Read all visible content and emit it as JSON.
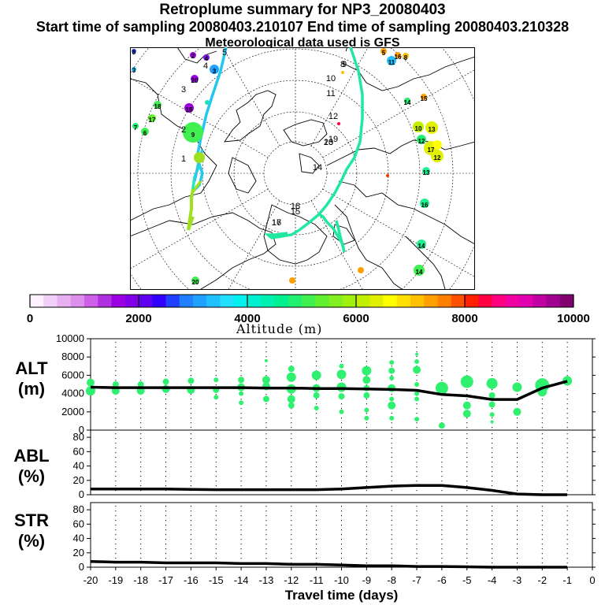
{
  "header": {
    "title": "Retroplume summary for NP3_20080403",
    "times": "Start time of sampling 20080403.210107     End time of sampling 20080403.210328",
    "met": "Meteorological data used is GFS"
  },
  "map": {
    "traj_day_labels": [
      "1",
      "2",
      "3",
      "4",
      "5",
      "6",
      "7",
      "8",
      "9",
      "10",
      "11",
      "12",
      "13",
      "14",
      "15",
      "16",
      "17",
      "18",
      "19",
      "20"
    ],
    "cluster_labels": [
      "8",
      "3",
      "2",
      "4",
      "3",
      "20",
      "19",
      "18",
      "17",
      "6",
      "7",
      "9",
      "5",
      "11",
      "16",
      "8",
      "14",
      "15",
      "10",
      "13",
      "12",
      "17",
      "12",
      "13",
      "16",
      "14",
      "14",
      "20"
    ]
  },
  "colorbar": {
    "ticks": [
      "0",
      "2000",
      "4000",
      "6000",
      "8000",
      "10000"
    ],
    "label": "Altitude (m)",
    "colors": [
      "#fff0ff",
      "#f0d0f8",
      "#e8b0f0",
      "#dc90ec",
      "#cc60e8",
      "#b030e0",
      "#9a00e0",
      "#8000e8",
      "#6000f0",
      "#3000ff",
      "#2040ff",
      "#2080ff",
      "#20a0ff",
      "#20c0ff",
      "#20e0ff",
      "#00f0f0",
      "#00f0d0",
      "#00f0b0",
      "#00f090",
      "#20f070",
      "#40f050",
      "#60f030",
      "#80f020",
      "#a0f010",
      "#c0f000",
      "#e0f000",
      "#ffff00",
      "#ffe000",
      "#ffc000",
      "#ffa000",
      "#ff8000",
      "#ff5000",
      "#ff2000",
      "#ff0040",
      "#ff0080",
      "#f000a0",
      "#e000b0",
      "#c000a0",
      "#a00090",
      "#800070"
    ]
  },
  "chart_data": [
    {
      "type": "line",
      "name": "ALT",
      "title": "ALT",
      "ylabel": "ALT (m)",
      "ylim": [
        0,
        10000
      ],
      "yticks": [
        0,
        2000,
        4000,
        6000,
        8000,
        10000
      ],
      "x": [
        -20,
        -19,
        -18,
        -17,
        -16,
        -15,
        -14,
        -13,
        -12,
        -11,
        -10,
        -9,
        -8,
        -7,
        -6,
        -5,
        -4,
        -3,
        -2,
        -1
      ],
      "values": [
        4700,
        4650,
        4650,
        4650,
        4650,
        4650,
        4650,
        4600,
        4600,
        4550,
        4550,
        4500,
        4450,
        4350,
        3900,
        3750,
        3350,
        3350,
        4600,
        5350
      ],
      "scatter_points": [
        {
          "x": -20,
          "y": 5200,
          "s": 5
        },
        {
          "x": -20,
          "y": 4300,
          "s": 6
        },
        {
          "x": -19,
          "y": 5000,
          "s": 4
        },
        {
          "x": -19,
          "y": 4300,
          "s": 5
        },
        {
          "x": -18,
          "y": 5000,
          "s": 4
        },
        {
          "x": -18,
          "y": 4300,
          "s": 5
        },
        {
          "x": -17,
          "y": 5300,
          "s": 4
        },
        {
          "x": -17,
          "y": 4500,
          "s": 5
        },
        {
          "x": -16,
          "y": 5400,
          "s": 4
        },
        {
          "x": -16,
          "y": 4400,
          "s": 5
        },
        {
          "x": -15,
          "y": 5500,
          "s": 3
        },
        {
          "x": -15,
          "y": 4400,
          "s": 4
        },
        {
          "x": -15,
          "y": 3600,
          "s": 3
        },
        {
          "x": -14,
          "y": 5500,
          "s": 4
        },
        {
          "x": -14,
          "y": 4700,
          "s": 5
        },
        {
          "x": -14,
          "y": 4000,
          "s": 3
        },
        {
          "x": -14,
          "y": 3000,
          "s": 3
        },
        {
          "x": -13,
          "y": 7600,
          "s": 2
        },
        {
          "x": -13,
          "y": 5500,
          "s": 5
        },
        {
          "x": -13,
          "y": 4800,
          "s": 5
        },
        {
          "x": -13,
          "y": 3400,
          "s": 4
        },
        {
          "x": -12,
          "y": 6700,
          "s": 4
        },
        {
          "x": -12,
          "y": 5800,
          "s": 6
        },
        {
          "x": -12,
          "y": 4500,
          "s": 6
        },
        {
          "x": -12,
          "y": 3400,
          "s": 5
        },
        {
          "x": -12,
          "y": 2700,
          "s": 4
        },
        {
          "x": -11,
          "y": 6000,
          "s": 6
        },
        {
          "x": -11,
          "y": 4600,
          "s": 5
        },
        {
          "x": -11,
          "y": 3800,
          "s": 4
        },
        {
          "x": -11,
          "y": 2400,
          "s": 3
        },
        {
          "x": -10,
          "y": 7000,
          "s": 3
        },
        {
          "x": -10,
          "y": 6100,
          "s": 6
        },
        {
          "x": -10,
          "y": 4700,
          "s": 6
        },
        {
          "x": -10,
          "y": 3700,
          "s": 4
        },
        {
          "x": -10,
          "y": 2000,
          "s": 3
        },
        {
          "x": -9,
          "y": 6500,
          "s": 6
        },
        {
          "x": -9,
          "y": 5500,
          "s": 5
        },
        {
          "x": -9,
          "y": 4600,
          "s": 4
        },
        {
          "x": -9,
          "y": 3800,
          "s": 4
        },
        {
          "x": -9,
          "y": 2200,
          "s": 3
        },
        {
          "x": -9,
          "y": 1300,
          "s": 3
        },
        {
          "x": -8,
          "y": 7400,
          "s": 3
        },
        {
          "x": -8,
          "y": 6500,
          "s": 4
        },
        {
          "x": -8,
          "y": 5700,
          "s": 3
        },
        {
          "x": -8,
          "y": 4600,
          "s": 5
        },
        {
          "x": -8,
          "y": 3400,
          "s": 3
        },
        {
          "x": -8,
          "y": 2700,
          "s": 5
        },
        {
          "x": -8,
          "y": 1300,
          "s": 3
        },
        {
          "x": -7,
          "y": 8300,
          "s": 2
        },
        {
          "x": -7,
          "y": 7500,
          "s": 3
        },
        {
          "x": -7,
          "y": 6600,
          "s": 5
        },
        {
          "x": -7,
          "y": 5000,
          "s": 3
        },
        {
          "x": -7,
          "y": 4000,
          "s": 3
        },
        {
          "x": -7,
          "y": 3400,
          "s": 3
        },
        {
          "x": -7,
          "y": 1200,
          "s": 3
        },
        {
          "x": -6,
          "y": 4600,
          "s": 8
        },
        {
          "x": -6,
          "y": 500,
          "s": 4
        },
        {
          "x": -5,
          "y": 5300,
          "s": 8
        },
        {
          "x": -5,
          "y": 2700,
          "s": 5
        },
        {
          "x": -5,
          "y": 1800,
          "s": 5
        },
        {
          "x": -4,
          "y": 5100,
          "s": 7
        },
        {
          "x": -4,
          "y": 3800,
          "s": 4
        },
        {
          "x": -4,
          "y": 2800,
          "s": 4
        },
        {
          "x": -4,
          "y": 1700,
          "s": 3
        },
        {
          "x": -4,
          "y": 900,
          "s": 2
        },
        {
          "x": -3,
          "y": 4700,
          "s": 6
        },
        {
          "x": -3,
          "y": 2000,
          "s": 5
        },
        {
          "x": -2,
          "y": 4900,
          "s": 9
        },
        {
          "x": -2,
          "y": 4200,
          "s": 6
        },
        {
          "x": -1,
          "y": 5400,
          "s": 6
        }
      ]
    },
    {
      "type": "line",
      "name": "ABL",
      "title": "ABL",
      "ylabel": "ABL (%)",
      "ylim": [
        0,
        90
      ],
      "yticks": [
        0,
        20,
        40,
        60,
        80
      ],
      "x": [
        -20,
        -19,
        -18,
        -17,
        -16,
        -15,
        -14,
        -13,
        -12,
        -11,
        -10,
        -9,
        -8,
        -7,
        -6,
        -5,
        -4,
        -3,
        -2,
        -1
      ],
      "values": [
        8,
        8,
        8,
        8,
        7.5,
        7,
        7,
        7,
        7,
        7,
        8,
        10,
        12,
        13,
        13,
        10,
        6,
        1,
        0,
        0
      ]
    },
    {
      "type": "line",
      "name": "STR",
      "title": "STR",
      "ylabel": "STR (%)",
      "ylim": [
        0,
        90
      ],
      "yticks": [
        0,
        20,
        40,
        60,
        80
      ],
      "x": [
        -20,
        -19,
        -18,
        -17,
        -16,
        -15,
        -14,
        -13,
        -12,
        -11,
        -10,
        -9,
        -8,
        -7,
        -6,
        -5,
        -4,
        -3,
        -2,
        -1
      ],
      "values": [
        8,
        7,
        7,
        6,
        6,
        6,
        5,
        5,
        4,
        4,
        3,
        2,
        2,
        1,
        1,
        0.5,
        0,
        0,
        0,
        0
      ],
      "xlabel": "Travel time (days)",
      "xticks": [
        -20,
        -19,
        -18,
        -17,
        -16,
        -15,
        -14,
        -13,
        -12,
        -11,
        -10,
        -9,
        -8,
        -7,
        -6,
        -5,
        -4,
        -3,
        -2,
        -1,
        0
      ]
    }
  ],
  "ylabels": {
    "alt": [
      "ALT",
      "(m)"
    ],
    "abl": [
      "ABL",
      "(%)"
    ],
    "str": [
      "STR",
      "(%)"
    ]
  }
}
